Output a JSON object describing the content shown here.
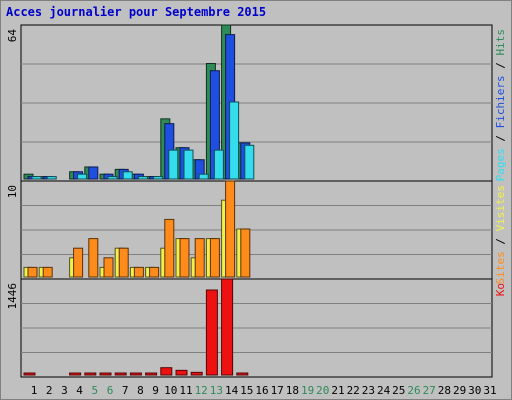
{
  "title": "Acces journalier pour Septembre 2015",
  "colors": {
    "hits": "#2e8b57",
    "files": "#1f4fe0",
    "pages": "#33ddee",
    "visits": "#f2f04a",
    "sites": "#ff8c1a",
    "kb": "#ee1111",
    "weekend_day": "#2e8b57",
    "weekday": "#000000"
  },
  "chart_data": [
    {
      "type": "bar",
      "panel": "hits_files_pages",
      "y_label": "64",
      "ylim": [
        0,
        64
      ],
      "legend": [
        {
          "text": "Pages",
          "color": "#33ddee"
        },
        {
          "text": " / ",
          "color": "#000000"
        },
        {
          "text": "Fichiers",
          "color": "#1f4fe0"
        },
        {
          "text": " / ",
          "color": "#000000"
        },
        {
          "text": "Hits",
          "color": "#2e8b57"
        }
      ],
      "categories": [
        "1",
        "2",
        "3",
        "4",
        "5",
        "6",
        "7",
        "8",
        "9",
        "10",
        "11",
        "12",
        "13",
        "14",
        "15",
        "16",
        "17",
        "18",
        "19",
        "20",
        "21",
        "22",
        "23",
        "24",
        "25",
        "26",
        "27",
        "28",
        "29",
        "30",
        "31"
      ],
      "series": [
        {
          "name": "Hits",
          "values": [
            2,
            1,
            0,
            3,
            5,
            2,
            4,
            2,
            1,
            25,
            13,
            8,
            48,
            64,
            15,
            0,
            0,
            0,
            0,
            0,
            0,
            0,
            0,
            0,
            0,
            0,
            0,
            0,
            0,
            0,
            0
          ]
        },
        {
          "name": "Fichiers",
          "values": [
            1,
            1,
            0,
            3,
            5,
            2,
            4,
            2,
            1,
            23,
            13,
            8,
            45,
            60,
            15,
            0,
            0,
            0,
            0,
            0,
            0,
            0,
            0,
            0,
            0,
            0,
            0,
            0,
            0,
            0,
            0
          ]
        },
        {
          "name": "Pages",
          "values": [
            1,
            1,
            0,
            2,
            0,
            1,
            3,
            1,
            1,
            12,
            12,
            2,
            12,
            32,
            14,
            0,
            0,
            0,
            0,
            0,
            0,
            0,
            0,
            0,
            0,
            0,
            0,
            0,
            0,
            0,
            0
          ]
        }
      ]
    },
    {
      "type": "bar",
      "panel": "visits_sites",
      "y_label": "10",
      "ylim": [
        0,
        10
      ],
      "legend": [
        {
          "text": "Sites",
          "color": "#ff8c1a"
        },
        {
          "text": " / ",
          "color": "#000000"
        },
        {
          "text": "Visites",
          "color": "#f2f04a"
        }
      ],
      "categories": [
        "1",
        "2",
        "3",
        "4",
        "5",
        "6",
        "7",
        "8",
        "9",
        "10",
        "11",
        "12",
        "13",
        "14",
        "15",
        "16",
        "17",
        "18",
        "19",
        "20",
        "21",
        "22",
        "23",
        "24",
        "25",
        "26",
        "27",
        "28",
        "29",
        "30",
        "31"
      ],
      "series": [
        {
          "name": "Visites",
          "values": [
            1,
            1,
            0,
            2,
            0,
            1,
            3,
            1,
            1,
            3,
            4,
            2,
            4,
            8,
            5,
            0,
            0,
            0,
            0,
            0,
            0,
            0,
            0,
            0,
            0,
            0,
            0,
            0,
            0,
            0,
            0
          ]
        },
        {
          "name": "Sites",
          "values": [
            1,
            1,
            0,
            3,
            4,
            2,
            3,
            1,
            1,
            6,
            4,
            4,
            4,
            10,
            5,
            0,
            0,
            0,
            0,
            0,
            0,
            0,
            0,
            0,
            0,
            0,
            0,
            0,
            0,
            0,
            0
          ]
        }
      ]
    },
    {
      "type": "bar",
      "panel": "kb",
      "y_label": "1446",
      "ylim": [
        0,
        1446
      ],
      "legend": [
        {
          "text": "Ko",
          "color": "#ee1111"
        }
      ],
      "categories": [
        "1",
        "2",
        "3",
        "4",
        "5",
        "6",
        "7",
        "8",
        "9",
        "10",
        "11",
        "12",
        "13",
        "14",
        "15",
        "16",
        "17",
        "18",
        "19",
        "20",
        "21",
        "22",
        "23",
        "24",
        "25",
        "26",
        "27",
        "28",
        "29",
        "30",
        "31"
      ],
      "series": [
        {
          "name": "Ko",
          "values": [
            20,
            0,
            0,
            20,
            20,
            20,
            20,
            20,
            20,
            110,
            70,
            40,
            1280,
            1446,
            30,
            0,
            0,
            0,
            0,
            0,
            0,
            0,
            0,
            0,
            0,
            0,
            0,
            0,
            0,
            0,
            0
          ]
        }
      ]
    }
  ],
  "x_axis": {
    "days": [
      "1",
      "2",
      "3",
      "4",
      "5",
      "6",
      "7",
      "8",
      "9",
      "10",
      "11",
      "12",
      "13",
      "14",
      "15",
      "16",
      "17",
      "18",
      "19",
      "20",
      "21",
      "22",
      "23",
      "24",
      "25",
      "26",
      "27",
      "28",
      "29",
      "30",
      "31"
    ],
    "weekend": [
      false,
      false,
      false,
      false,
      true,
      true,
      false,
      false,
      false,
      false,
      false,
      true,
      true,
      false,
      false,
      false,
      false,
      false,
      true,
      true,
      false,
      false,
      false,
      false,
      false,
      true,
      true,
      false,
      false,
      false,
      false
    ]
  }
}
